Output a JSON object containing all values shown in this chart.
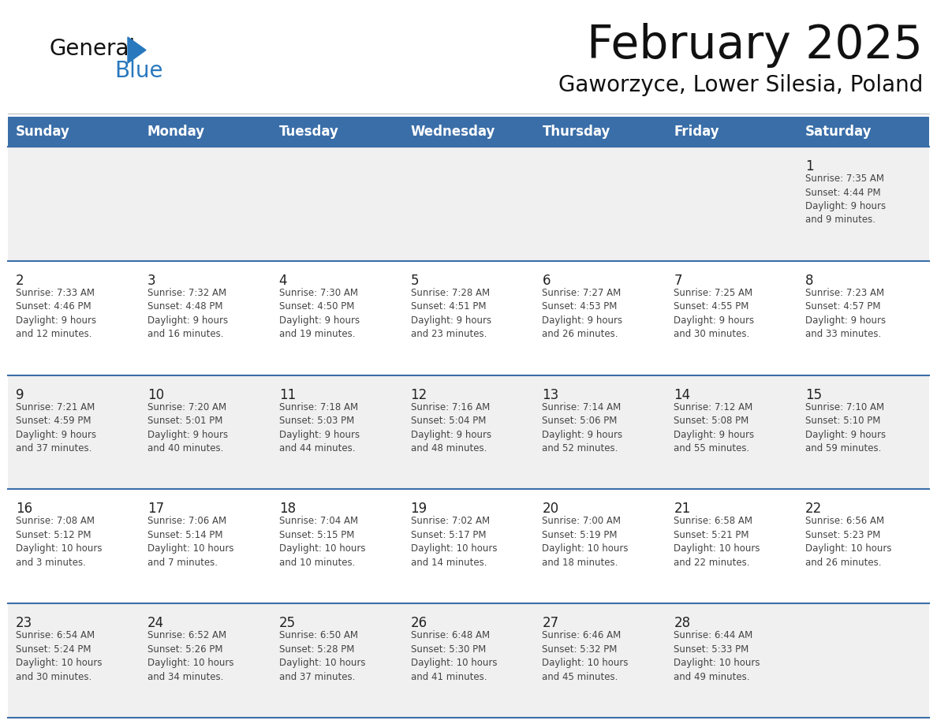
{
  "title": "February 2025",
  "subtitle": "Gaworzyce, Lower Silesia, Poland",
  "days_of_week": [
    "Sunday",
    "Monday",
    "Tuesday",
    "Wednesday",
    "Thursday",
    "Friday",
    "Saturday"
  ],
  "header_bg": "#3A6EA8",
  "header_text": "#FFFFFF",
  "cell_bg_odd": "#F0F0F0",
  "cell_bg_even": "#FFFFFF",
  "grid_line_color": "#3A6EA8",
  "day_number_color": "#222222",
  "text_color": "#444444",
  "title_color": "#111111",
  "subtitle_color": "#111111",
  "logo_general_color": "#111111",
  "logo_blue_color": "#2878BE",
  "logo_triangle_color": "#2878BE",
  "weeks": [
    [
      {
        "day": null,
        "info": ""
      },
      {
        "day": null,
        "info": ""
      },
      {
        "day": null,
        "info": ""
      },
      {
        "day": null,
        "info": ""
      },
      {
        "day": null,
        "info": ""
      },
      {
        "day": null,
        "info": ""
      },
      {
        "day": 1,
        "info": "Sunrise: 7:35 AM\nSunset: 4:44 PM\nDaylight: 9 hours\nand 9 minutes."
      }
    ],
    [
      {
        "day": 2,
        "info": "Sunrise: 7:33 AM\nSunset: 4:46 PM\nDaylight: 9 hours\nand 12 minutes."
      },
      {
        "day": 3,
        "info": "Sunrise: 7:32 AM\nSunset: 4:48 PM\nDaylight: 9 hours\nand 16 minutes."
      },
      {
        "day": 4,
        "info": "Sunrise: 7:30 AM\nSunset: 4:50 PM\nDaylight: 9 hours\nand 19 minutes."
      },
      {
        "day": 5,
        "info": "Sunrise: 7:28 AM\nSunset: 4:51 PM\nDaylight: 9 hours\nand 23 minutes."
      },
      {
        "day": 6,
        "info": "Sunrise: 7:27 AM\nSunset: 4:53 PM\nDaylight: 9 hours\nand 26 minutes."
      },
      {
        "day": 7,
        "info": "Sunrise: 7:25 AM\nSunset: 4:55 PM\nDaylight: 9 hours\nand 30 minutes."
      },
      {
        "day": 8,
        "info": "Sunrise: 7:23 AM\nSunset: 4:57 PM\nDaylight: 9 hours\nand 33 minutes."
      }
    ],
    [
      {
        "day": 9,
        "info": "Sunrise: 7:21 AM\nSunset: 4:59 PM\nDaylight: 9 hours\nand 37 minutes."
      },
      {
        "day": 10,
        "info": "Sunrise: 7:20 AM\nSunset: 5:01 PM\nDaylight: 9 hours\nand 40 minutes."
      },
      {
        "day": 11,
        "info": "Sunrise: 7:18 AM\nSunset: 5:03 PM\nDaylight: 9 hours\nand 44 minutes."
      },
      {
        "day": 12,
        "info": "Sunrise: 7:16 AM\nSunset: 5:04 PM\nDaylight: 9 hours\nand 48 minutes."
      },
      {
        "day": 13,
        "info": "Sunrise: 7:14 AM\nSunset: 5:06 PM\nDaylight: 9 hours\nand 52 minutes."
      },
      {
        "day": 14,
        "info": "Sunrise: 7:12 AM\nSunset: 5:08 PM\nDaylight: 9 hours\nand 55 minutes."
      },
      {
        "day": 15,
        "info": "Sunrise: 7:10 AM\nSunset: 5:10 PM\nDaylight: 9 hours\nand 59 minutes."
      }
    ],
    [
      {
        "day": 16,
        "info": "Sunrise: 7:08 AM\nSunset: 5:12 PM\nDaylight: 10 hours\nand 3 minutes."
      },
      {
        "day": 17,
        "info": "Sunrise: 7:06 AM\nSunset: 5:14 PM\nDaylight: 10 hours\nand 7 minutes."
      },
      {
        "day": 18,
        "info": "Sunrise: 7:04 AM\nSunset: 5:15 PM\nDaylight: 10 hours\nand 10 minutes."
      },
      {
        "day": 19,
        "info": "Sunrise: 7:02 AM\nSunset: 5:17 PM\nDaylight: 10 hours\nand 14 minutes."
      },
      {
        "day": 20,
        "info": "Sunrise: 7:00 AM\nSunset: 5:19 PM\nDaylight: 10 hours\nand 18 minutes."
      },
      {
        "day": 21,
        "info": "Sunrise: 6:58 AM\nSunset: 5:21 PM\nDaylight: 10 hours\nand 22 minutes."
      },
      {
        "day": 22,
        "info": "Sunrise: 6:56 AM\nSunset: 5:23 PM\nDaylight: 10 hours\nand 26 minutes."
      }
    ],
    [
      {
        "day": 23,
        "info": "Sunrise: 6:54 AM\nSunset: 5:24 PM\nDaylight: 10 hours\nand 30 minutes."
      },
      {
        "day": 24,
        "info": "Sunrise: 6:52 AM\nSunset: 5:26 PM\nDaylight: 10 hours\nand 34 minutes."
      },
      {
        "day": 25,
        "info": "Sunrise: 6:50 AM\nSunset: 5:28 PM\nDaylight: 10 hours\nand 37 minutes."
      },
      {
        "day": 26,
        "info": "Sunrise: 6:48 AM\nSunset: 5:30 PM\nDaylight: 10 hours\nand 41 minutes."
      },
      {
        "day": 27,
        "info": "Sunrise: 6:46 AM\nSunset: 5:32 PM\nDaylight: 10 hours\nand 45 minutes."
      },
      {
        "day": 28,
        "info": "Sunrise: 6:44 AM\nSunset: 5:33 PM\nDaylight: 10 hours\nand 49 minutes."
      },
      {
        "day": null,
        "info": ""
      }
    ]
  ]
}
